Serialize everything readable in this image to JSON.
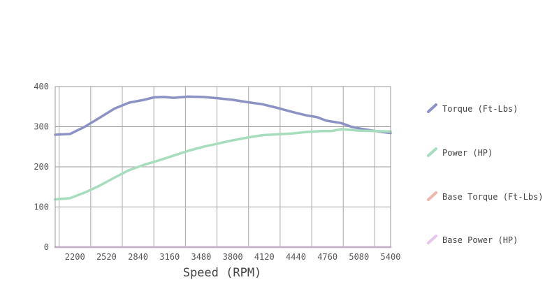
{
  "chart_data": {
    "type": "line",
    "title": "",
    "xlabel": "Speed (RPM)",
    "ylabel": "",
    "x_ticks": [
      "2200",
      "2520",
      "2840",
      "3160",
      "3480",
      "3800",
      "4120",
      "4440",
      "4760",
      "5080",
      "5400"
    ],
    "y_ticks": [
      "0",
      "100",
      "200",
      "300",
      "400"
    ],
    "xlim": [
      2000,
      5400
    ],
    "ylim": [
      0,
      400
    ],
    "grid": true,
    "legend_position": "right",
    "series": [
      {
        "name": "Torque (Ft-Lbs)",
        "color": "#8d92c4",
        "x": [
          2000,
          2150,
          2300,
          2450,
          2600,
          2750,
          2900,
          3000,
          3100,
          3200,
          3350,
          3500,
          3650,
          3800,
          3950,
          4100,
          4250,
          4400,
          4550,
          4650,
          4750,
          4900,
          5000,
          5100,
          5250,
          5400
        ],
        "y": [
          280,
          282,
          300,
          322,
          345,
          360,
          367,
          373,
          374,
          372,
          375,
          374,
          371,
          367,
          361,
          356,
          347,
          337,
          328,
          324,
          315,
          309,
          300,
          295,
          289,
          284
        ]
      },
      {
        "name": "Power (HP)",
        "color": "#a7ddbd",
        "x": [
          2000,
          2150,
          2300,
          2450,
          2600,
          2750,
          2900,
          3050,
          3200,
          3350,
          3500,
          3650,
          3800,
          3950,
          4100,
          4250,
          4400,
          4550,
          4700,
          4800,
          4900,
          5000,
          5100,
          5250,
          5400
        ],
        "y": [
          119,
          122,
          136,
          153,
          173,
          192,
          205,
          216,
          228,
          240,
          250,
          258,
          266,
          273,
          279,
          281,
          283,
          287,
          289,
          289,
          294,
          292,
          290,
          289,
          288
        ]
      },
      {
        "name": "Base Torque (Ft-Lbs)",
        "color": "#f0b6ae",
        "x": [
          2000,
          5400
        ],
        "y": [
          0,
          0
        ]
      },
      {
        "name": "Base Power (HP)",
        "color": "#e6c6ec",
        "x": [
          2000,
          5400
        ],
        "y": [
          0,
          0
        ]
      }
    ]
  }
}
